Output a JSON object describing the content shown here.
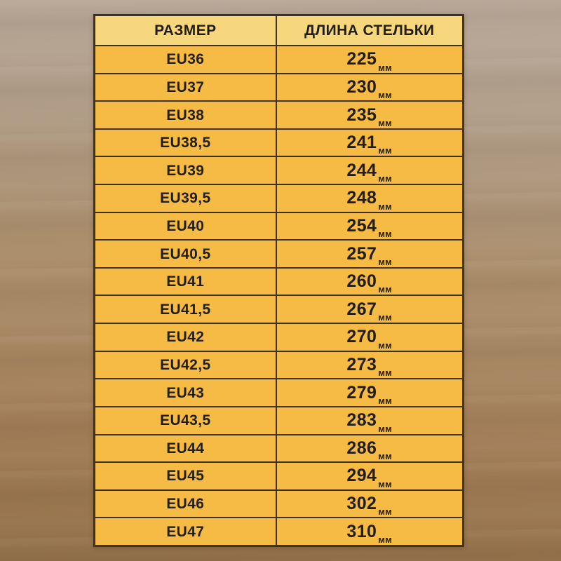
{
  "colors": {
    "header_bg": "#F7D77E",
    "row_bg": "#F6BB45",
    "border": "#3D3322",
    "text": "#221D15"
  },
  "chart_data": {
    "type": "table",
    "title": "",
    "columns": [
      "РАЗМЕР",
      "ДЛИНА СТЕЛЬКИ"
    ],
    "unit": "мм",
    "rows": [
      {
        "size": "EU36",
        "insole_mm": 225
      },
      {
        "size": "EU37",
        "insole_mm": 230
      },
      {
        "size": "EU38",
        "insole_mm": 235
      },
      {
        "size": "EU38,5",
        "insole_mm": 241
      },
      {
        "size": "EU39",
        "insole_mm": 244
      },
      {
        "size": "EU39,5",
        "insole_mm": 248
      },
      {
        "size": "EU40",
        "insole_mm": 254
      },
      {
        "size": "EU40,5",
        "insole_mm": 257
      },
      {
        "size": "EU41",
        "insole_mm": 260
      },
      {
        "size": "EU41,5",
        "insole_mm": 267
      },
      {
        "size": "EU42",
        "insole_mm": 270
      },
      {
        "size": "EU42,5",
        "insole_mm": 273
      },
      {
        "size": "EU43",
        "insole_mm": 279
      },
      {
        "size": "EU43,5",
        "insole_mm": 283
      },
      {
        "size": "EU44",
        "insole_mm": 286
      },
      {
        "size": "EU45",
        "insole_mm": 294
      },
      {
        "size": "EU46",
        "insole_mm": 302
      },
      {
        "size": "EU47",
        "insole_mm": 310
      }
    ]
  }
}
